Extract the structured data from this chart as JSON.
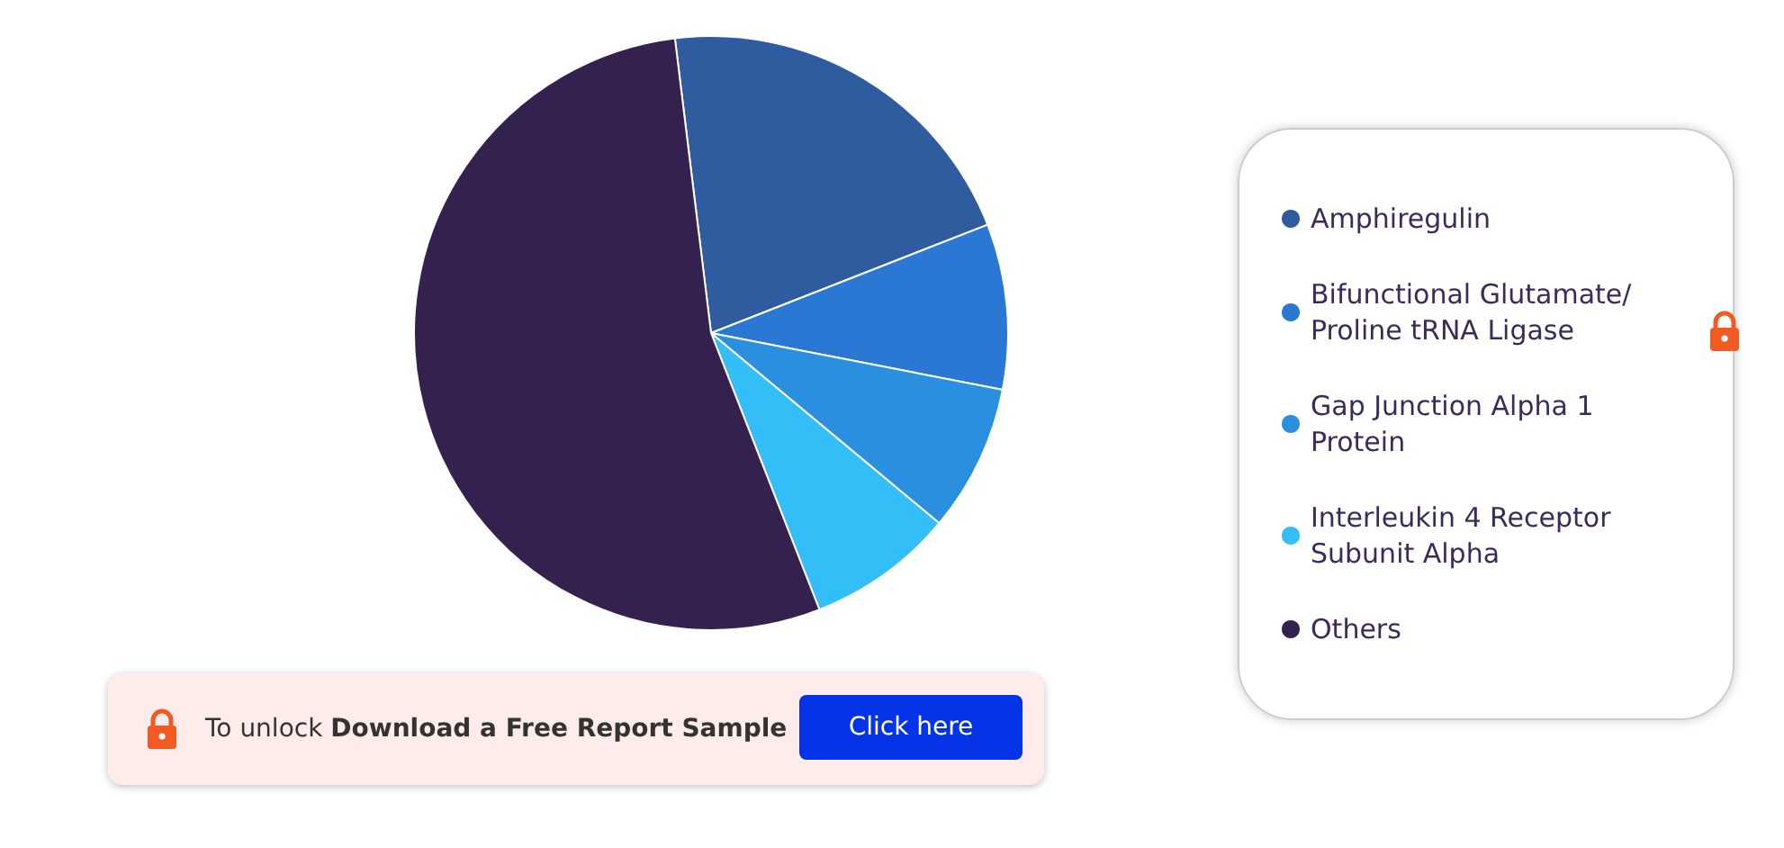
{
  "chart_data": {
    "type": "pie",
    "categories": [
      "Amphiregulin",
      "Bifunctional Glutamate/Proline tRNA Ligase",
      "Gap Junction Alpha 1 Protein",
      "Interleukin 4 Receptor Subunit Alpha",
      "Others"
    ],
    "values": [
      21,
      9,
      8,
      8,
      54
    ],
    "colors": [
      "#2f5b9f",
      "#2b78d4",
      "#2b8fe0",
      "#33bef8",
      "#35214f"
    ],
    "legend": "right",
    "annotations": [
      "To unlock Download a Free Report Sample",
      "Click here"
    ]
  }
}
